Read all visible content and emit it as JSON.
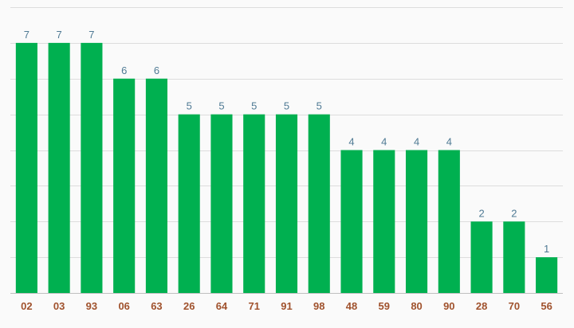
{
  "chart_data": {
    "type": "bar",
    "categories": [
      "02",
      "03",
      "93",
      "06",
      "63",
      "26",
      "64",
      "71",
      "91",
      "98",
      "48",
      "59",
      "80",
      "90",
      "28",
      "70",
      "56"
    ],
    "values": [
      7,
      7,
      7,
      6,
      6,
      5,
      5,
      5,
      5,
      5,
      4,
      4,
      4,
      4,
      2,
      2,
      1
    ],
    "title": "",
    "xlabel": "",
    "ylabel": "",
    "ylim": [
      0,
      8
    ],
    "grid": true,
    "legend": "none",
    "data_labels": true
  },
  "colors": {
    "bar": "#00b050",
    "data_label": "#4f7a94",
    "tick_label": "#a0522d",
    "grid": "#dddddd",
    "axis": "#bfbfbf",
    "background": "#fafafa"
  }
}
